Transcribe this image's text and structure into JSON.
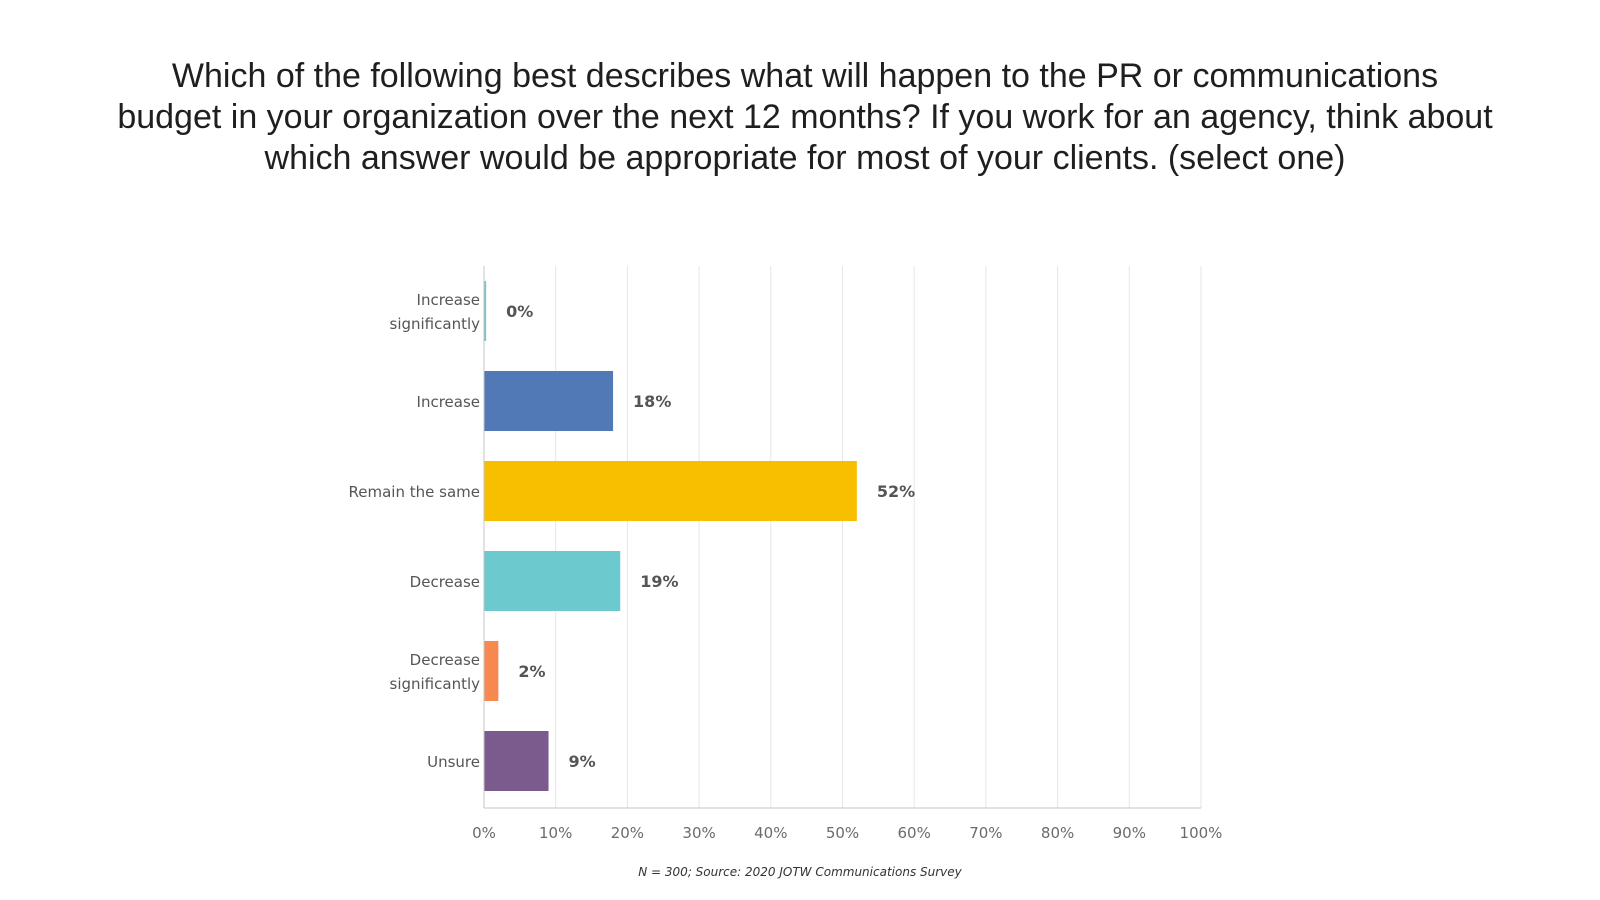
{
  "title_lines": [
    "Which of the following best describes what will happen to the PR or communications",
    "budget in your organization over the next 12 months? If you work for an agency, think about",
    "which answer would be appropriate for most of your clients. (select one)"
  ],
  "footnote": "N = 300; Source: 2020 JOTW Communications Survey",
  "chart_data": {
    "type": "bar",
    "orientation": "horizontal",
    "title": "Which of the following best describes what will happen to the PR or communications budget in your organization over the next 12 months? If you work for an agency, think about which answer would be appropriate for most of your clients. (select one)",
    "categories": [
      [
        "Increase",
        "significantly"
      ],
      [
        "Increase"
      ],
      [
        "Remain the same"
      ],
      [
        "Decrease"
      ],
      [
        "Decrease",
        "significantly"
      ],
      [
        "Unsure"
      ]
    ],
    "values": [
      0.3,
      18,
      52,
      19,
      2,
      9
    ],
    "value_labels": [
      "0%",
      "18%",
      "52%",
      "19%",
      "2%",
      "9%"
    ],
    "colors": [
      "#6cc9cd",
      "#5079b5",
      "#f8be00",
      "#6cc9cd",
      "#f7884f",
      "#7b5b8d"
    ],
    "xlim": [
      0,
      100
    ],
    "x_ticks": [
      0,
      10,
      20,
      30,
      40,
      50,
      60,
      70,
      80,
      90,
      100
    ],
    "x_tick_labels": [
      "0%",
      "10%",
      "20%",
      "30%",
      "40%",
      "50%",
      "60%",
      "70%",
      "80%",
      "90%",
      "100%"
    ],
    "xlabel": "",
    "ylabel": "",
    "grid": true,
    "legend": "none"
  }
}
